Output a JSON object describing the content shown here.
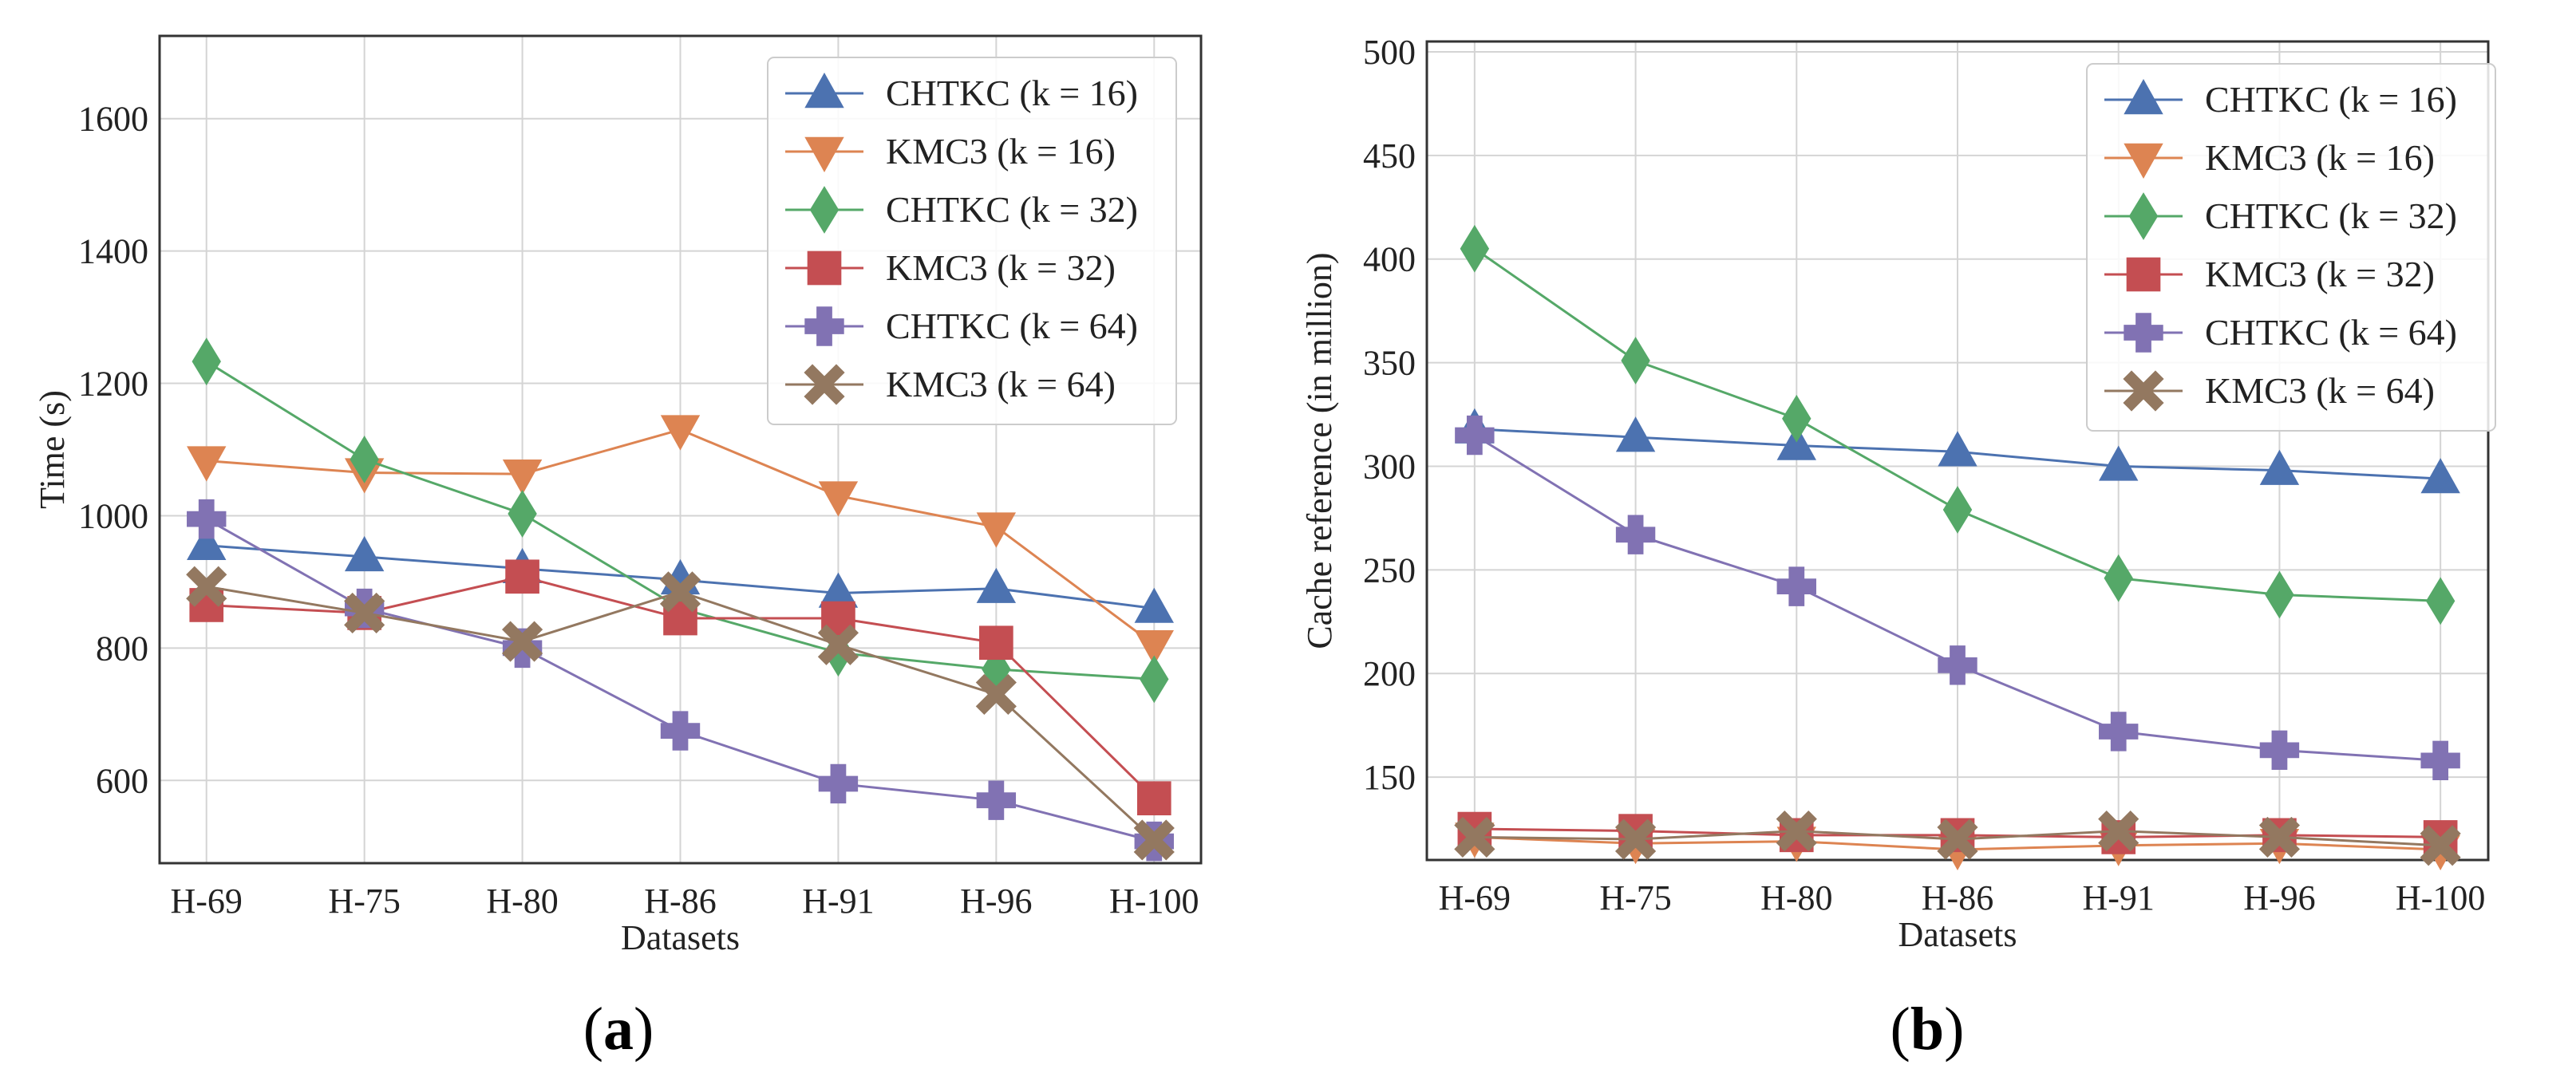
{
  "colors": {
    "blue": "#4c72b0",
    "orange": "#dd8452",
    "green": "#55a868",
    "red": "#c44e52",
    "purple": "#8172b3",
    "brown": "#937860"
  },
  "chart_data": [
    {
      "type": "line",
      "panel_label": "a",
      "xlabel": "Datasets",
      "ylabel": "Time (s)",
      "categories": [
        "H-69",
        "H-75",
        "H-80",
        "H-86",
        "H-91",
        "H-96",
        "H-100"
      ],
      "ylim": [
        475,
        1725
      ],
      "yticks": [
        600,
        800,
        1000,
        1200,
        1400,
        1600
      ],
      "grid": true,
      "legend_position": "top-right",
      "series": [
        {
          "name": "CHTKC (k = 16)",
          "color": "#4c72b0",
          "marker": "triangle-up",
          "values": [
            955,
            938,
            920,
            903,
            883,
            890,
            860
          ]
        },
        {
          "name": "KMC3 (k = 16)",
          "color": "#dd8452",
          "marker": "triangle-down",
          "values": [
            1083,
            1065,
            1063,
            1130,
            1030,
            983,
            805
          ]
        },
        {
          "name": "CHTKC (k = 32)",
          "color": "#55a868",
          "marker": "diamond",
          "values": [
            1233,
            1085,
            1003,
            860,
            793,
            768,
            753
          ]
        },
        {
          "name": "KMC3 (k = 32)",
          "color": "#c44e52",
          "marker": "square",
          "values": [
            865,
            853,
            908,
            845,
            845,
            808,
            573
          ]
        },
        {
          "name": "CHTKC (k = 64)",
          "color": "#8172b3",
          "marker": "plus",
          "values": [
            995,
            860,
            800,
            675,
            595,
            570,
            508
          ]
        },
        {
          "name": "KMC3 (k = 64)",
          "color": "#937860",
          "marker": "x",
          "values": [
            893,
            853,
            810,
            885,
            805,
            730,
            510
          ]
        }
      ]
    },
    {
      "type": "line",
      "panel_label": "b",
      "xlabel": "Datasets",
      "ylabel": "Cache reference (in million)",
      "categories": [
        "H-69",
        "H-75",
        "H-80",
        "H-86",
        "H-91",
        "H-96",
        "H-100"
      ],
      "ylim": [
        110,
        505
      ],
      "yticks": [
        150,
        200,
        250,
        300,
        350,
        400,
        450,
        500
      ],
      "grid": true,
      "legend_position": "top-right",
      "series": [
        {
          "name": "CHTKC (k = 16)",
          "color": "#4c72b0",
          "marker": "triangle-up",
          "values": [
            318,
            314,
            310,
            307,
            300,
            298,
            294
          ]
        },
        {
          "name": "KMC3 (k = 16)",
          "color": "#dd8452",
          "marker": "triangle-down",
          "values": [
            121,
            118,
            119,
            115,
            117,
            118,
            115
          ]
        },
        {
          "name": "CHTKC (k = 32)",
          "color": "#55a868",
          "marker": "diamond",
          "values": [
            405,
            351,
            323,
            279,
            246,
            238,
            235
          ]
        },
        {
          "name": "KMC3 (k = 32)",
          "color": "#c44e52",
          "marker": "square",
          "values": [
            125,
            124,
            122,
            122,
            121,
            122,
            121
          ]
        },
        {
          "name": "CHTKC (k = 64)",
          "color": "#8172b3",
          "marker": "plus",
          "values": [
            315,
            267,
            242,
            204,
            172,
            163,
            158
          ]
        },
        {
          "name": "KMC3 (k = 64)",
          "color": "#937860",
          "marker": "x",
          "values": [
            121,
            120,
            124,
            120,
            124,
            121,
            117
          ]
        }
      ]
    }
  ]
}
